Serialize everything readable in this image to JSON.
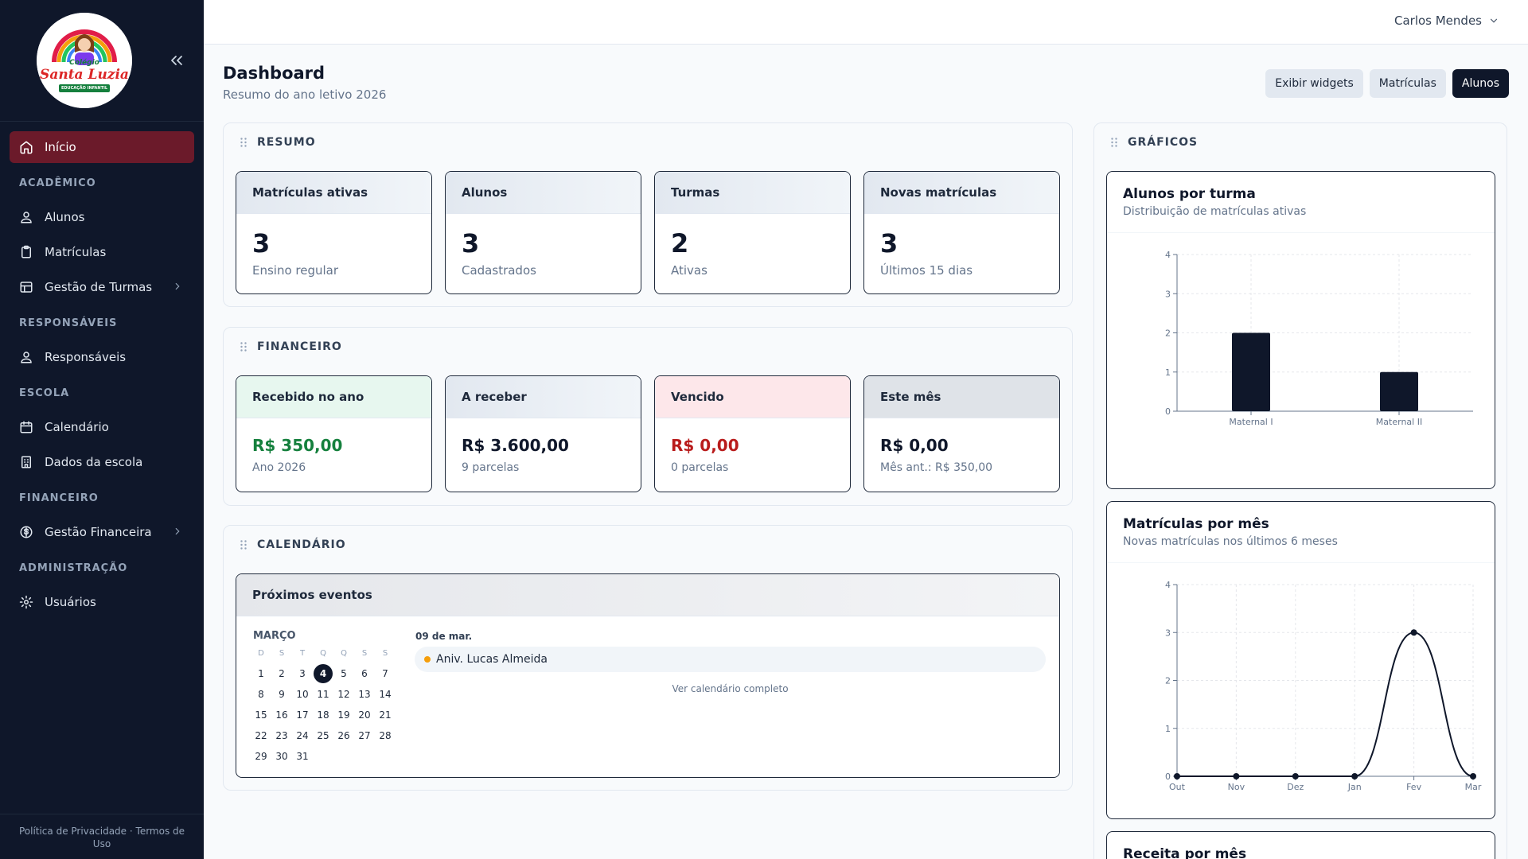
{
  "app": {
    "user_name": "Carlos Mendes"
  },
  "logo": {
    "line1": "Colégio",
    "line2": "Santa Luzia",
    "line3": "EDUCAÇÃO INFANTIL"
  },
  "sidebar": {
    "home": "Início",
    "sections": {
      "academico": "ACADÊMICO",
      "responsaveis": "RESPONSÁVEIS",
      "escola": "ESCOLA",
      "financeiro": "FINANCEIRO",
      "administracao": "ADMINISTRAÇÃO"
    },
    "items": {
      "alunos": "Alunos",
      "matriculas": "Matrículas",
      "turmas": "Gestão de Turmas",
      "responsaveis": "Responsáveis",
      "calendario": "Calendário",
      "dados_escola": "Dados da escola",
      "gestao_financeira": "Gestão Financeira",
      "usuarios": "Usuários"
    },
    "footer": {
      "privacy": "Política de Privacidade",
      "sep": "·",
      "terms": "Termos de Uso"
    }
  },
  "header": {
    "title": "Dashboard",
    "subtitle": "Resumo do ano letivo 2026",
    "buttons": {
      "widgets": "Exibir widgets",
      "matriculas": "Matrículas",
      "alunos": "Alunos"
    }
  },
  "resumo": {
    "title": "RESUMO",
    "cards": [
      {
        "label": "Matrículas ativas",
        "value": "3",
        "sub": "Ensino regular"
      },
      {
        "label": "Alunos",
        "value": "3",
        "sub": "Cadastrados"
      },
      {
        "label": "Turmas",
        "value": "2",
        "sub": "Ativas"
      },
      {
        "label": "Novas matrículas",
        "value": "3",
        "sub": "Últimos 15 dias"
      }
    ]
  },
  "financeiro": {
    "title": "FINANCEIRO",
    "cards": [
      {
        "label": "Recebido no ano",
        "value": "R$ 350,00",
        "sub": "Ano 2026",
        "color": "#15803d"
      },
      {
        "label": "A receber",
        "value": "R$ 3.600,00",
        "sub": "9 parcelas",
        "color": "#0f172a"
      },
      {
        "label": "Vencido",
        "value": "R$ 0,00",
        "sub": "0 parcelas",
        "color": "#b91c1c"
      },
      {
        "label": "Este mês",
        "value": "R$ 0,00",
        "sub": "Mês ant.: R$ 350,00",
        "color": "#0f172a"
      }
    ]
  },
  "calendario": {
    "title": "CALENDÁRIO",
    "card_title": "Próximos eventos",
    "month": "MARÇO",
    "weekdays": [
      "D",
      "S",
      "T",
      "Q",
      "Q",
      "S",
      "S"
    ],
    "days": [
      1,
      2,
      3,
      4,
      5,
      6,
      7,
      8,
      9,
      10,
      11,
      12,
      13,
      14,
      15,
      16,
      17,
      18,
      19,
      20,
      21,
      22,
      23,
      24,
      25,
      26,
      27,
      28,
      29,
      30,
      31
    ],
    "today": 4,
    "event_date": "09 de mar.",
    "event": "Aniv. Lucas Almeida",
    "event_color": "#f59e0b",
    "link": "Ver calendário completo"
  },
  "graficos": {
    "title": "GRÁFICOS"
  },
  "chart_data": [
    {
      "type": "bar",
      "title": "Alunos por turma",
      "subtitle": "Distribuição de matrículas ativas",
      "categories": [
        "Maternal I",
        "Maternal II"
      ],
      "values": [
        2,
        1
      ],
      "ylim": [
        0,
        4
      ],
      "yticks": [
        0,
        1,
        2,
        3,
        4
      ],
      "grid": true,
      "bar_color": "#0f172a"
    },
    {
      "type": "line",
      "title": "Matrículas por mês",
      "subtitle": "Novas matrículas nos últimos 6 meses",
      "categories": [
        "Out",
        "Nov",
        "Dez",
        "Jan",
        "Fev",
        "Mar"
      ],
      "values": [
        0,
        0,
        0,
        0,
        3,
        0
      ],
      "ylim": [
        0,
        4
      ],
      "yticks": [
        0,
        1,
        2,
        3,
        4
      ],
      "grid": true,
      "line_color": "#0f172a"
    },
    {
      "type": "bar",
      "title": "Receita por mês"
    }
  ]
}
